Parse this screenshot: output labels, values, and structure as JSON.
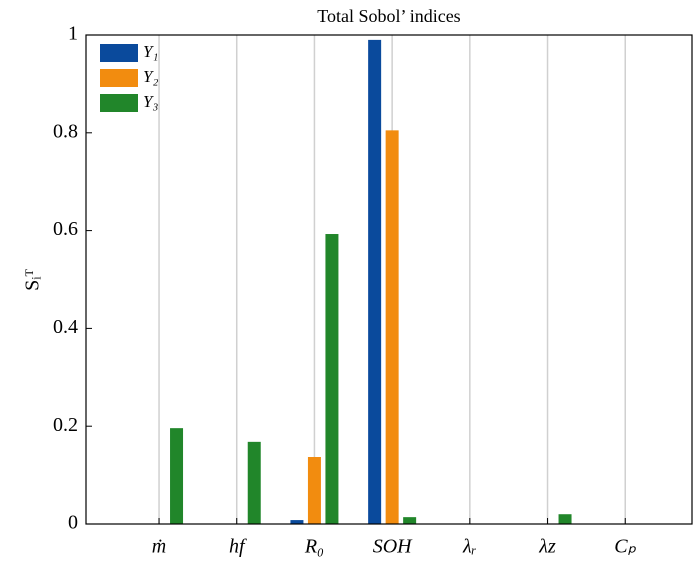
{
  "chart_data": {
    "type": "bar",
    "title": "Total Sobol’ indices",
    "y_label": "Sᵢᵀ",
    "categories": [
      "ṁ",
      "hf",
      "R₀",
      "SOH",
      "λᵣ",
      "λz",
      "Cₚ"
    ],
    "series": [
      {
        "name": "Y₁",
        "color": "#0a4a9c",
        "values": [
          0,
          0,
          0.008,
          0.99,
          0,
          0,
          0
        ]
      },
      {
        "name": "Y₂",
        "color": "#f28c0f",
        "values": [
          0,
          0,
          0.137,
          0.805,
          0,
          0,
          0
        ]
      },
      {
        "name": "Y₃",
        "color": "#21862a",
        "values": [
          0.196,
          0.168,
          0.593,
          0.014,
          0,
          0.02,
          0
        ]
      }
    ],
    "ylim": [
      0,
      1
    ],
    "yticks": [
      0,
      0.2,
      0.4,
      0.6,
      0.8,
      1
    ],
    "grid": "x",
    "legend": "upper left"
  }
}
